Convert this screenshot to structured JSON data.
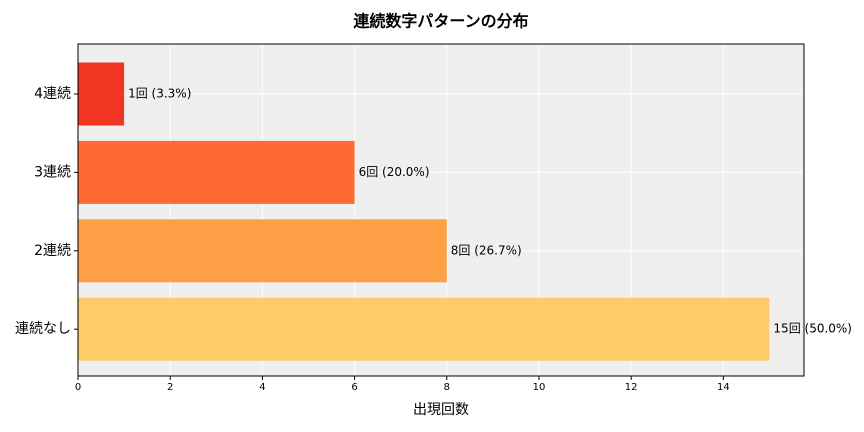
{
  "chart_data": {
    "type": "barh",
    "title": "連続数字パターンの分布",
    "xlabel": "出現回数",
    "categories": [
      "4連続",
      "3連続",
      "2連続",
      "連続なし"
    ],
    "values": [
      1,
      6,
      8,
      15
    ],
    "value_labels": [
      "1回 (3.3%)",
      "6回 (20.0%)",
      "8回 (26.7%)",
      "15回 (50.0%)"
    ],
    "colors": [
      "#f03523",
      "#fd6a33",
      "#fd9f45",
      "#fecb6b"
    ],
    "xlim": [
      0,
      15.75
    ],
    "xticks": [
      0,
      2,
      4,
      6,
      8,
      10,
      12,
      14
    ],
    "grid": true
  }
}
